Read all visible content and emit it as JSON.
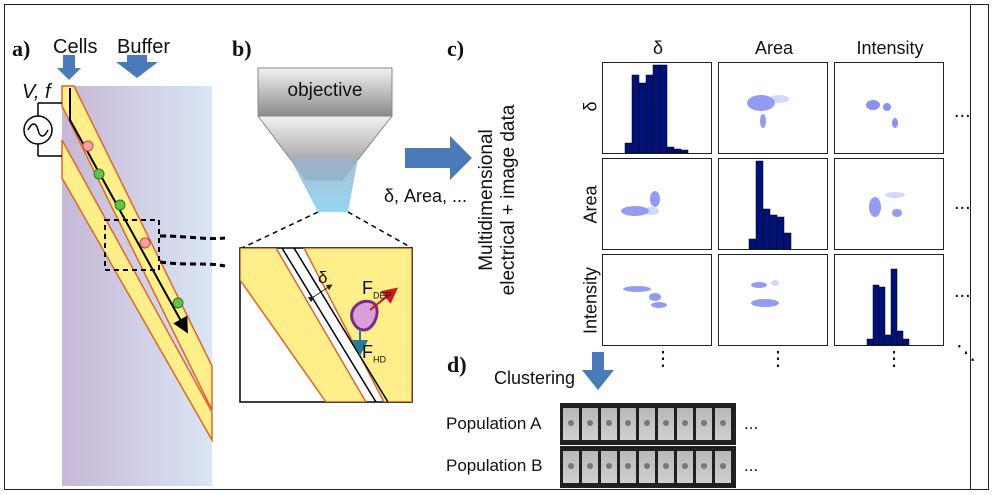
{
  "panel_a": {
    "label": "a)",
    "cells_label": "Cells",
    "buffer_label": "Buffer",
    "voltage_label": "V, f"
  },
  "panel_b": {
    "label": "b)",
    "objective_label": "objective",
    "delta_label": "δ",
    "fdep_label": "F",
    "fdep_sub": "DEP",
    "fhd_label": "F",
    "fhd_sub": "HD"
  },
  "arrow_text": "δ, Area, ...",
  "panel_c": {
    "label": "c)",
    "axis_title_line1": "Multidimensional",
    "axis_title_line2": "electrical + image data",
    "columns": [
      "δ",
      "Area",
      "Intensity"
    ],
    "rows": [
      "δ",
      "Area",
      "Intensity"
    ],
    "ellipsis": "⋮",
    "h_ellipsis": "...",
    "diag_ellipsis": "⋱"
  },
  "panel_d": {
    "label": "d)",
    "clustering_label": "Clustering",
    "populations": [
      "Population A",
      "Population B"
    ],
    "ellipsis": "..."
  },
  "colors": {
    "arrow_blue": "#4a7ab8",
    "bar_navy": "#00127a",
    "channel_yellow": "#ffef8a",
    "channel_edge": "#e0652a",
    "background_grad_left": "#c9b8d8",
    "background_grad_right": "#d6e4f2",
    "cell_red": "#f4a3a0",
    "cell_green": "#63c04a",
    "particle_purple": "#8a48a8"
  }
}
